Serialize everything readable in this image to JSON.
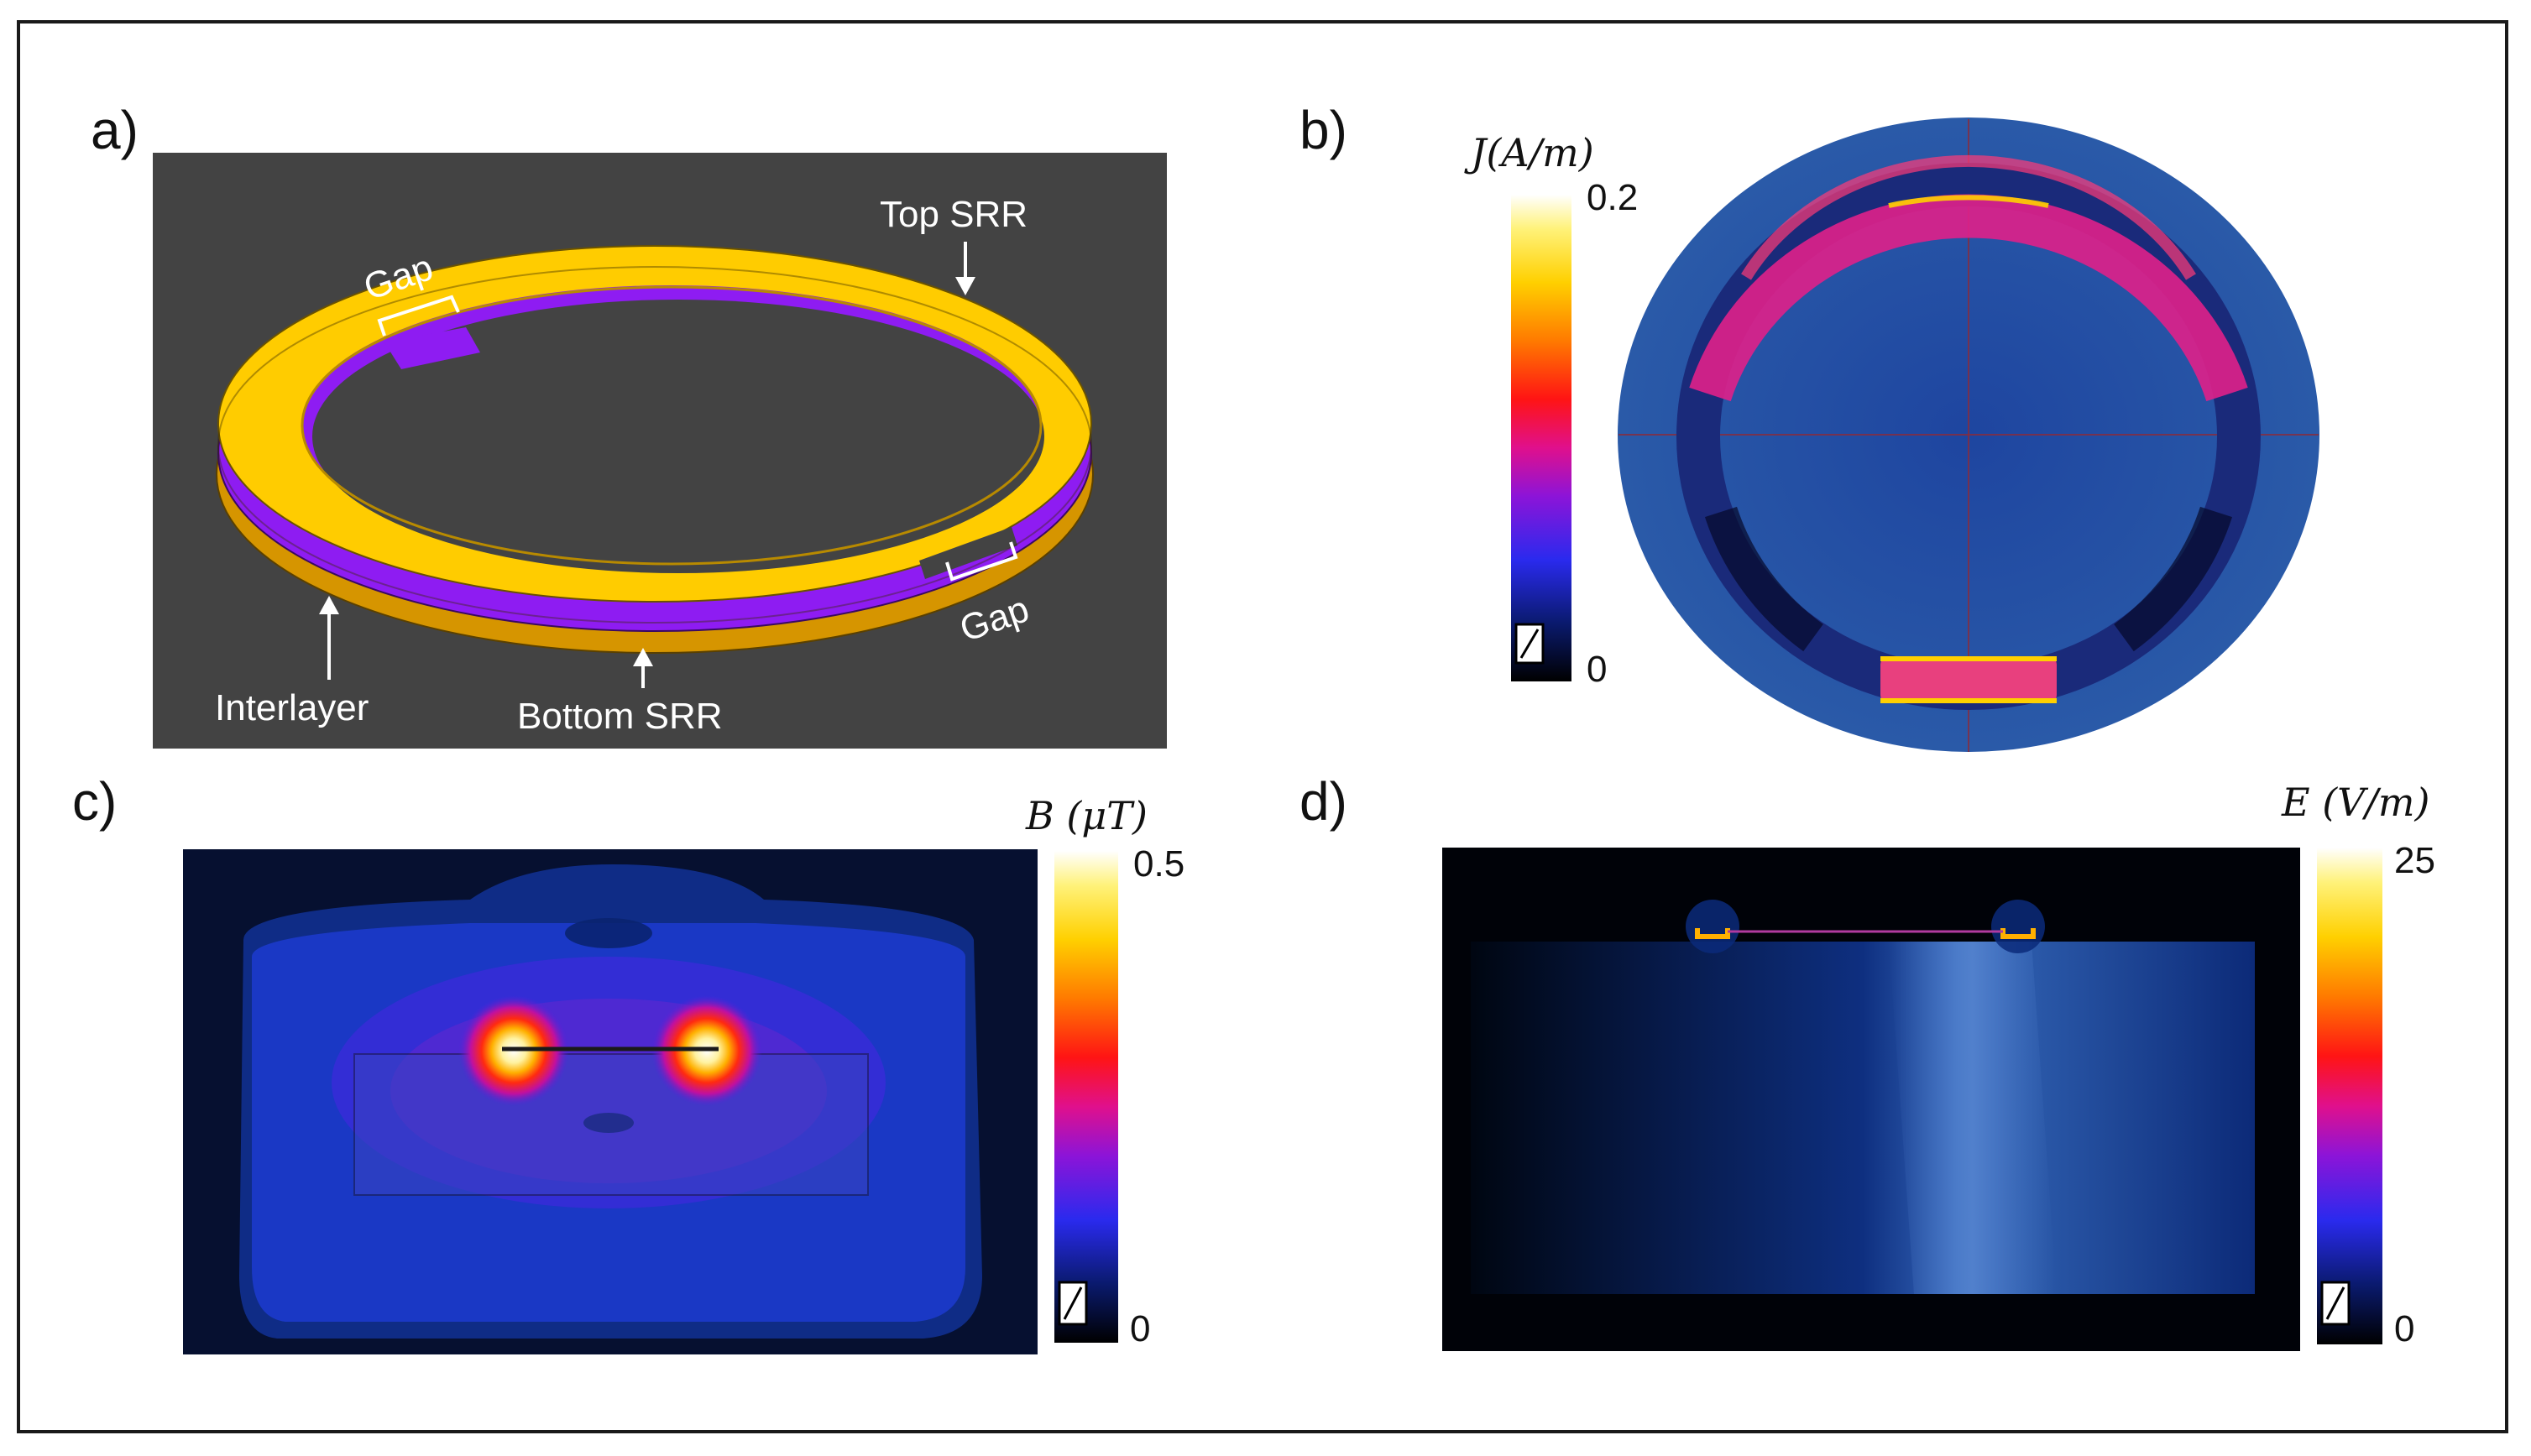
{
  "panels": {
    "a": {
      "label": "a)",
      "annotations": {
        "top_srr": "Top SRR",
        "gap_top": "Gap",
        "gap_right": "Gap",
        "interlayer": "Interlayer",
        "bottom_srr": "Bottom SRR"
      },
      "colors": {
        "background": "#434343",
        "top_ring": "#ffcc00",
        "interlayer": "#9b1fff",
        "bottom_ring": "#e8a800"
      }
    },
    "b": {
      "label": "b)",
      "colorbar": {
        "title": "J(A/m)",
        "max": "0.2",
        "min": "0"
      }
    },
    "c": {
      "label": "c)",
      "colorbar": {
        "title": "B (μT)",
        "max": "0.5",
        "min": "0"
      }
    },
    "d": {
      "label": "d)",
      "colorbar": {
        "title": "E (V/m)",
        "max": "25",
        "min": "0"
      }
    }
  }
}
